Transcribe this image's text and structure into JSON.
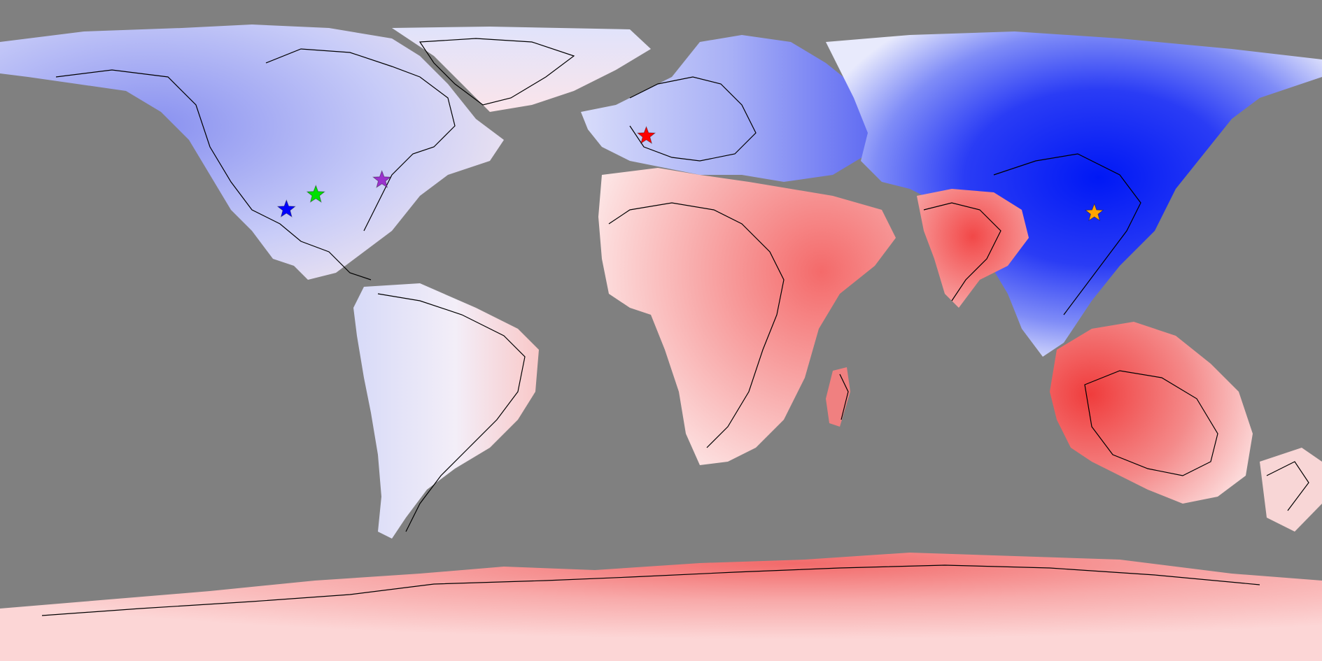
{
  "map": {
    "ocean_color": "#808080",
    "cold_color": "#0020ff",
    "warm_color": "#ff3030",
    "neutral_color": "#ffffff",
    "outline_color": "#000000"
  },
  "markers": [
    {
      "id": "marker-blue",
      "color": "#0000ff",
      "lon": -100,
      "lat": 33
    },
    {
      "id": "marker-green",
      "color": "#00e000",
      "lon": -92,
      "lat": 37
    },
    {
      "id": "marker-purple",
      "color": "#9a32cd",
      "lon": -74,
      "lat": 41
    },
    {
      "id": "marker-red",
      "color": "#ff0000",
      "lon": -2,
      "lat": 53
    },
    {
      "id": "marker-orange",
      "color": "#ffa500",
      "lon": 120,
      "lat": 32
    }
  ]
}
